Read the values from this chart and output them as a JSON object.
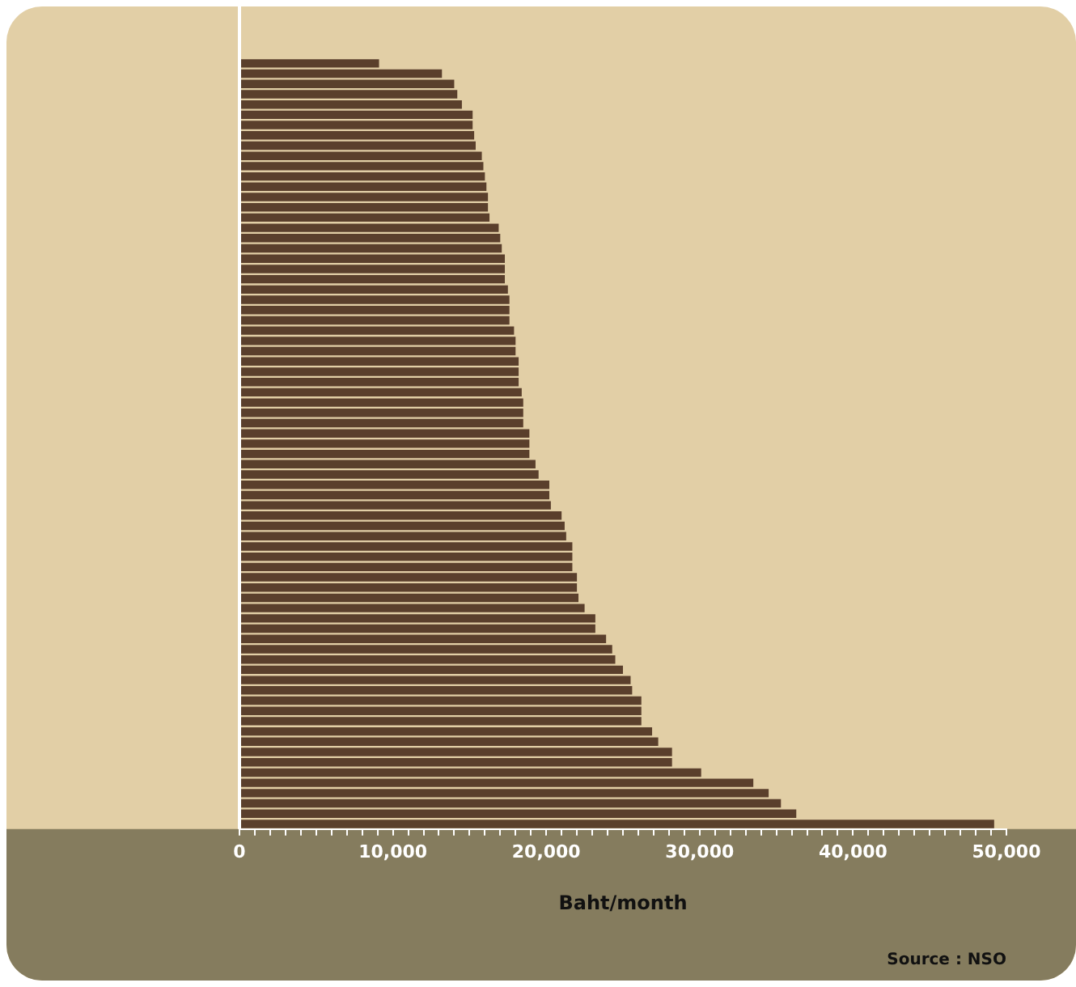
{
  "chart_data": {
    "type": "bar",
    "orientation": "horizontal",
    "xlabel": "Baht/month",
    "annotations": [
      "Source : NSO"
    ],
    "categories": [
      null,
      null,
      null,
      null,
      null,
      null,
      null,
      null,
      null,
      null,
      null,
      null,
      null,
      null,
      null,
      null,
      null,
      null,
      null,
      null,
      null,
      null,
      null,
      null,
      null,
      null,
      null,
      null,
      null,
      null,
      null,
      null,
      null,
      null,
      null,
      null,
      null,
      null,
      null,
      null,
      null,
      null,
      null,
      null,
      null,
      null,
      null,
      null,
      null,
      null,
      null,
      null,
      null,
      null,
      null,
      null,
      null,
      null,
      null,
      null,
      null,
      null,
      null,
      null,
      null,
      null,
      null,
      null,
      null,
      null,
      null,
      null,
      null,
      null,
      null
    ],
    "values": [
      9100,
      13200,
      14000,
      14200,
      14500,
      15200,
      15200,
      15300,
      15400,
      15800,
      15900,
      16000,
      16100,
      16200,
      16200,
      16300,
      16900,
      17000,
      17100,
      17300,
      17300,
      17300,
      17500,
      17600,
      17600,
      17600,
      17900,
      18000,
      18000,
      18200,
      18200,
      18200,
      18400,
      18500,
      18500,
      18500,
      18900,
      18900,
      18900,
      19300,
      19500,
      20200,
      20200,
      20300,
      21000,
      21200,
      21300,
      21700,
      21700,
      21700,
      22000,
      22000,
      22100,
      22500,
      23200,
      23200,
      23900,
      24300,
      24500,
      25000,
      25500,
      25600,
      26200,
      26200,
      26200,
      26900,
      27300,
      28200,
      28200,
      30100,
      33500,
      34500,
      35300,
      36300,
      49200
    ],
    "color": "#5a3f2c",
    "xlim": [
      0,
      50000
    ],
    "xticks": [
      0,
      {
        "value": 1000,
        "label": null
      },
      {
        "value": 2000,
        "label": null
      },
      {
        "value": 3000,
        "label": null
      },
      {
        "value": 4000,
        "label": null
      },
      {
        "value": 5000,
        "label": null
      },
      {
        "value": 6000,
        "label": null
      },
      {
        "value": 7000,
        "label": null
      },
      {
        "value": 8000,
        "label": null
      },
      {
        "value": 9000,
        "label": null
      },
      {
        "value": 10000,
        "label": "10,000"
      },
      {
        "value": 11000,
        "label": null
      },
      {
        "value": 12000,
        "label": null
      },
      {
        "value": 13000,
        "label": null
      },
      {
        "value": 14000,
        "label": null
      },
      {
        "value": 15000,
        "label": null
      },
      {
        "value": 16000,
        "label": null
      },
      {
        "value": 17000,
        "label": null
      },
      {
        "value": 18000,
        "label": null
      },
      {
        "value": 19000,
        "label": null
      },
      {
        "value": 20000,
        "label": "20,000"
      },
      {
        "value": 21000,
        "label": null
      },
      {
        "value": 22000,
        "label": null
      },
      {
        "value": 23000,
        "label": null
      },
      {
        "value": 24000,
        "label": null
      },
      {
        "value": 25000,
        "label": null
      },
      {
        "value": 26000,
        "label": null
      },
      {
        "value": 27000,
        "label": null
      },
      {
        "value": 28000,
        "label": null
      },
      {
        "value": 29000,
        "label": null
      },
      {
        "value": 30000,
        "label": "30,000"
      },
      {
        "value": 31000,
        "label": null
      },
      {
        "value": 32000,
        "label": null
      },
      {
        "value": 33000,
        "label": null
      },
      {
        "value": 34000,
        "label": null
      },
      {
        "value": 35000,
        "label": null
      },
      {
        "value": 36000,
        "label": null
      },
      {
        "value": 37000,
        "label": null
      },
      {
        "value": 38000,
        "label": null
      },
      {
        "value": 39000,
        "label": null
      },
      {
        "value": 40000,
        "label": "40,000"
      },
      {
        "value": 41000,
        "label": null
      },
      {
        "value": 42000,
        "label": null
      },
      {
        "value": 43000,
        "label": null
      },
      {
        "value": 44000,
        "label": null
      },
      {
        "value": 45000,
        "label": null
      },
      {
        "value": 46000,
        "label": null
      },
      {
        "value": 47000,
        "label": null
      },
      {
        "value": 48000,
        "label": null
      },
      {
        "value": 49000,
        "label": null
      },
      {
        "value": 50000,
        "label": "50,000"
      }
    ],
    "tick_labels": "x",
    "grid": false,
    "legend": false
  }
}
